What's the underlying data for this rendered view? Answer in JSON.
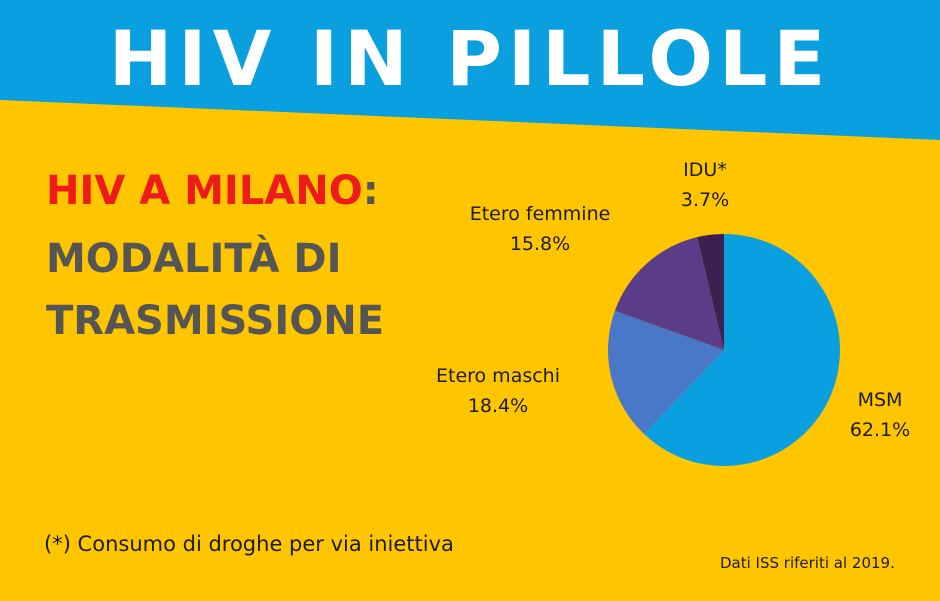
{
  "header": {
    "title": "HIV IN PILLOLE",
    "background_color": "#0aa0e0"
  },
  "heading": {
    "red_part": "HIV A MILANO",
    "colon": ":",
    "line2": "MODALITÀ DI",
    "line3": "TRASMISSIONE"
  },
  "chart_data": {
    "type": "pie",
    "title": "",
    "slices": [
      {
        "label": "MSM",
        "value": 62.1,
        "value_label": "62.1%",
        "color": "#0aa0e0"
      },
      {
        "label": "Etero maschi",
        "value": 18.4,
        "value_label": "18.4%",
        "color": "#4a78c8"
      },
      {
        "label": "Etero femmine",
        "value": 15.8,
        "value_label": "15.8%",
        "color": "#5a3d86"
      },
      {
        "label": "IDU*",
        "value": 3.7,
        "value_label": "3.7%",
        "color": "#3d1f52"
      }
    ]
  },
  "footnotes": {
    "left": "(*) Consumo di droghe per via iniettiva",
    "right": "Dati ISS riferiti al 2019."
  }
}
